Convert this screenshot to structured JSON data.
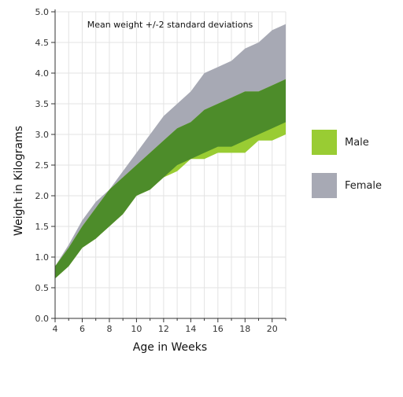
{
  "chart_data": {
    "type": "area",
    "title": "Mean weight +/-2 standard deviations",
    "xlabel": "Age in Weeks",
    "ylabel": "Weight in Kilograms",
    "xlim": [
      4,
      21
    ],
    "ylim": [
      0,
      5.0
    ],
    "x_ticks": [
      4,
      6,
      8,
      10,
      12,
      14,
      16,
      18,
      20
    ],
    "y_ticks": [
      0.0,
      0.5,
      1.0,
      1.5,
      2.0,
      2.5,
      3.0,
      3.5,
      4.0,
      4.5,
      5.0
    ],
    "x_tick_labels": [
      "4",
      "6",
      "8",
      "10",
      "12",
      "14",
      "16",
      "18",
      "20"
    ],
    "y_tick_labels": [
      "0.0",
      "0.5",
      "1.0",
      "1.5",
      "2.0",
      "2.5",
      "3.0",
      "3.5",
      "4.0",
      "4.5",
      "5.0"
    ],
    "grid": true,
    "legend_position": "right",
    "x": [
      4,
      5,
      6,
      7,
      8,
      9,
      10,
      11,
      12,
      13,
      14,
      15,
      16,
      17,
      18,
      19,
      20,
      21
    ],
    "series": [
      {
        "name": "Female",
        "color": "#a7a9b4",
        "lower": [
          0.65,
          0.85,
          1.15,
          1.3,
          1.5,
          1.7,
          2.0,
          2.1,
          2.3,
          2.5,
          2.6,
          2.7,
          2.8,
          2.8,
          2.9,
          3.0,
          3.1,
          3.2
        ],
        "upper": [
          0.85,
          1.2,
          1.6,
          1.9,
          2.1,
          2.4,
          2.7,
          3.0,
          3.3,
          3.5,
          3.7,
          4.0,
          4.1,
          4.2,
          4.4,
          4.5,
          4.7,
          4.8
        ]
      },
      {
        "name": "Male",
        "color": "#99cc33",
        "lower": [
          0.65,
          0.85,
          1.15,
          1.3,
          1.5,
          1.7,
          2.0,
          2.1,
          2.3,
          2.4,
          2.6,
          2.6,
          2.7,
          2.7,
          2.7,
          2.9,
          2.9,
          3.0
        ],
        "upper": [
          0.85,
          1.15,
          1.5,
          1.8,
          2.1,
          2.3,
          2.5,
          2.7,
          2.9,
          3.1,
          3.2,
          3.4,
          3.5,
          3.6,
          3.7,
          3.7,
          3.8,
          3.9
        ]
      }
    ],
    "overlap_color": "#4d8c2a"
  },
  "legend": {
    "items": [
      {
        "label": "Male",
        "color": "#99cc33"
      },
      {
        "label": "Female",
        "color": "#a7a9b4"
      }
    ]
  }
}
